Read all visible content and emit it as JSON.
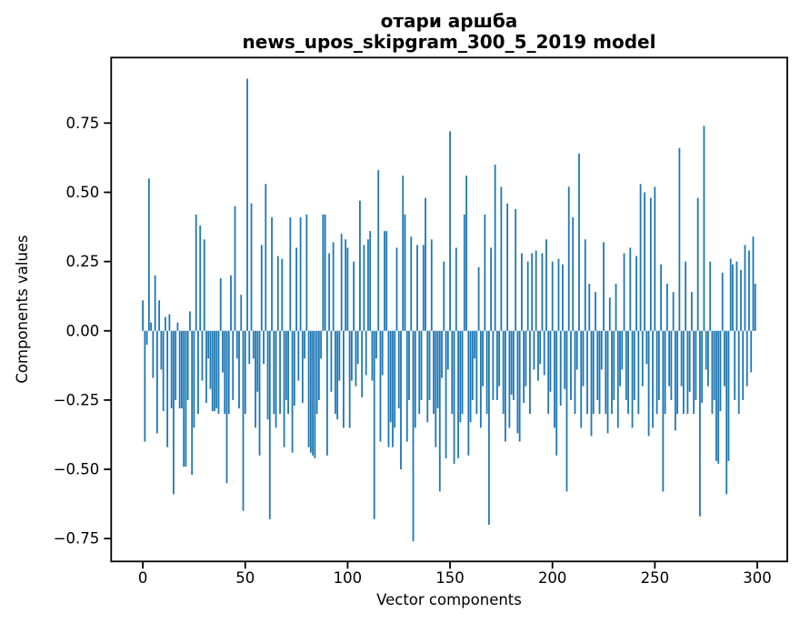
{
  "chart_data": {
    "type": "bar",
    "title": "отари аршба\nnews_upos_skipgram_300_5_2019 model",
    "title_line1": "отари аршба",
    "title_line2": "news_upos_skipgram_300_5_2019 model",
    "xlabel": "Vector components",
    "ylabel": "Components values",
    "bar_color": "#1f77b4",
    "axis_color": "#000000",
    "grid": false,
    "legend": false,
    "n_components": 300,
    "xlim": [
      -15.45,
      314.65
    ],
    "ylim": [
      -0.8325,
      0.9865
    ],
    "x_tick_values": [
      0,
      50,
      100,
      150,
      200,
      250,
      300
    ],
    "x_tick_labels": [
      "0",
      "50",
      "100",
      "150",
      "200",
      "250",
      "300"
    ],
    "y_tick_values": [
      0.75,
      0.5,
      0.25,
      0,
      -0.25,
      -0.5,
      -0.75
    ],
    "y_tick_labels": [
      "0.75",
      "0.50",
      "0.25",
      "0.00",
      "−0.25",
      "−0.50",
      "−0.75"
    ],
    "values": [
      0.11,
      -0.4,
      -0.05,
      0.55,
      0.03,
      -0.17,
      0.2,
      -0.37,
      0.11,
      -0.14,
      -0.29,
      0.05,
      -0.42,
      0.06,
      -0.28,
      -0.59,
      -0.25,
      0.03,
      -0.28,
      -0.28,
      -0.49,
      -0.49,
      -0.25,
      0.07,
      -0.52,
      -0.35,
      0.42,
      -0.3,
      0.38,
      -0.18,
      0.33,
      -0.26,
      -0.1,
      -0.21,
      -0.29,
      -0.29,
      -0.28,
      -0.3,
      0.19,
      -0.15,
      -0.3,
      -0.55,
      -0.3,
      0.2,
      -0.25,
      0.45,
      -0.1,
      -0.28,
      0.13,
      -0.65,
      -0.3,
      0.91,
      -0.12,
      0.46,
      -0.1,
      -0.35,
      -0.22,
      -0.45,
      0.31,
      -0.12,
      0.53,
      -0.32,
      -0.68,
      0.41,
      -0.3,
      -0.35,
      0.27,
      -0.3,
      0.26,
      -0.42,
      -0.25,
      -0.3,
      0.41,
      -0.44,
      -0.27,
      0.3,
      -0.18,
      0.41,
      -0.26,
      -0.1,
      0.42,
      -0.42,
      -0.44,
      -0.45,
      -0.46,
      -0.3,
      -0.25,
      -0.1,
      0.42,
      0.42,
      -0.45,
      0.28,
      -0.22,
      0.32,
      -0.3,
      -0.32,
      -0.18,
      0.35,
      -0.35,
      0.33,
      0.3,
      -0.35,
      -0.18,
      0.25,
      -0.2,
      -0.12,
      0.47,
      -0.24,
      0.31,
      -0.16,
      0.33,
      0.36,
      -0.18,
      -0.68,
      -0.1,
      0.58,
      -0.4,
      -0.16,
      0.36,
      0.36,
      -0.42,
      -0.33,
      -0.42,
      -0.35,
      0.3,
      -0.28,
      -0.5,
      0.56,
      0.42,
      -0.4,
      -0.25,
      0.34,
      -0.76,
      -0.35,
      0.31,
      -0.3,
      -0.25,
      0.31,
      0.48,
      -0.33,
      -0.25,
      0.33,
      -0.3,
      -0.42,
      -0.28,
      -0.58,
      -0.17,
      0.25,
      -0.46,
      -0.14,
      0.72,
      -0.3,
      -0.48,
      0.3,
      -0.46,
      -0.33,
      -0.3,
      0.42,
      0.56,
      -0.45,
      -0.33,
      -0.25,
      -0.1,
      -0.3,
      0.23,
      -0.35,
      -0.2,
      0.42,
      -0.3,
      -0.7,
      0.3,
      -0.25,
      0.6,
      -0.25,
      -0.2,
      0.52,
      -0.3,
      -0.4,
      0.46,
      -0.35,
      -0.23,
      -0.25,
      0.44,
      -0.37,
      -0.4,
      0.28,
      -0.26,
      -0.2,
      0.25,
      -0.3,
      0.28,
      -0.14,
      0.29,
      -0.18,
      -0.12,
      0.28,
      -0.16,
      0.33,
      -0.3,
      -0.22,
      0.25,
      -0.35,
      -0.45,
      0.26,
      -0.27,
      0.24,
      -0.21,
      -0.58,
      0.52,
      -0.25,
      0.41,
      -0.3,
      -0.14,
      0.64,
      -0.35,
      -0.2,
      0.33,
      -0.3,
      0.17,
      -0.38,
      -0.3,
      0.14,
      -0.25,
      -0.3,
      -0.14,
      0.32,
      -0.3,
      -0.37,
      0.12,
      -0.3,
      -0.25,
      0.17,
      -0.35,
      -0.2,
      -0.14,
      0.28,
      -0.25,
      -0.3,
      0.3,
      -0.35,
      -0.25,
      0.27,
      -0.3,
      0.53,
      -0.2,
      0.5,
      -0.12,
      -0.38,
      0.48,
      -0.35,
      0.52,
      -0.3,
      -0.25,
      0.24,
      -0.58,
      -0.3,
      0.17,
      -0.2,
      -0.25,
      0.14,
      -0.36,
      -0.3,
      0.66,
      -0.2,
      -0.3,
      0.25,
      -0.3,
      -0.22,
      0.14,
      -0.3,
      -0.25,
      0.48,
      -0.67,
      -0.26,
      0.74,
      -0.14,
      -0.2,
      0.25,
      -0.3,
      -0.25,
      -0.47,
      -0.48,
      -0.29,
      0.21,
      -0.2,
      -0.59,
      -0.47,
      0.26,
      0.24,
      -0.25,
      0.25,
      -0.3,
      0.22,
      -0.25,
      0.31,
      -0.2,
      0.29,
      -0.15,
      0.34,
      0.17
    ]
  }
}
